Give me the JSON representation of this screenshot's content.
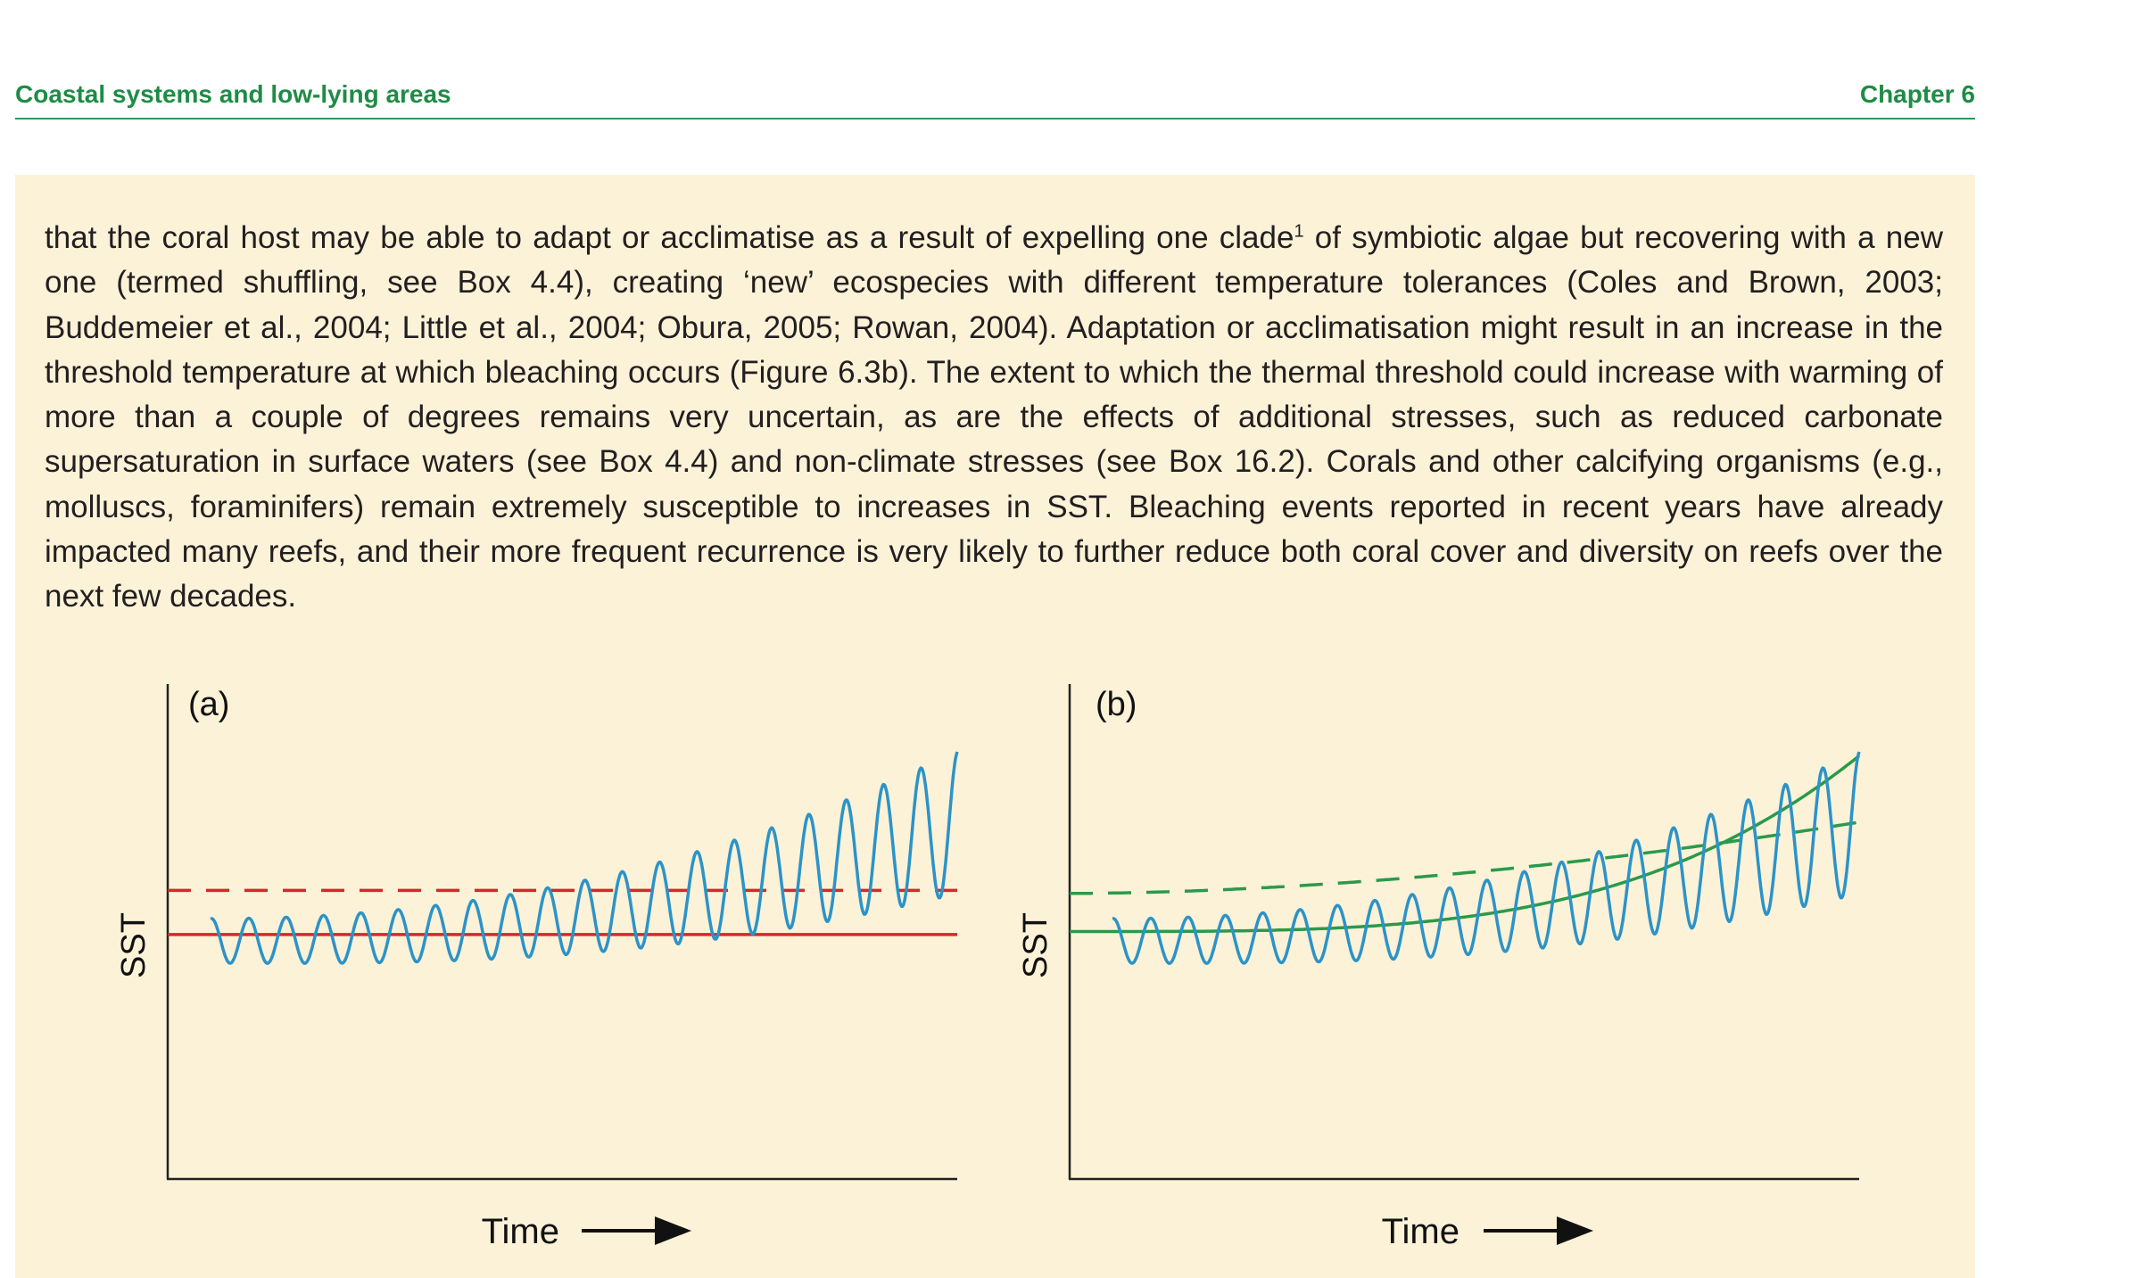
{
  "header": {
    "section_title": "Coastal systems and low-lying areas",
    "chapter": "Chapter 6"
  },
  "paragraph": {
    "part1": "that the coral host may be able to adapt or acclimatise as a result of expelling one clade",
    "footnote_mark": "1",
    "part2": " of symbiotic algae but recovering with a new one (termed shuffling, see Box 4.4), creating ‘new’ ecospecies with different temperature tolerances (Coles and Brown, 2003; Buddemeier et al., 2004; Little et al., 2004; Obura, 2005; Rowan, 2004). Adaptation or acclimatisation might result in an increase in the threshold temperature at which bleaching occurs (Figure 6.3b). The extent to which the thermal threshold could increase with warming of more than a couple of degrees remains very uncertain, as are the effects of additional stresses, such as reduced carbonate supersaturation in surface waters (see Box 4.4) and non-climate stresses (see Box 16.2). Corals and other calcifying organisms (e.g., molluscs, foraminifers) remain extremely susceptible to increases in SST. Bleaching events reported in recent years have already impacted many reefs, and their more frequent recurrence is very likely to further reduce both coral cover and diversity on reefs over the next few decades."
  },
  "colors": {
    "sst_line": "#2b93c8",
    "threshold_red": "#d8262a",
    "threshold_green": "#2a9a4a",
    "axis": "#222222",
    "panel_bg": "#fcf2d8"
  },
  "chart_data": [
    {
      "type": "line",
      "panel_label": "(a)",
      "xlabel": "Time",
      "ylabel": "SST",
      "ticks": "none",
      "series": [
        {
          "kind": "oscillating",
          "color": "#2b93c8",
          "cycles": 20,
          "trend": "rising, accelerating",
          "amplitude": "growing"
        },
        {
          "kind": "constant-solid",
          "color": "#d8262a",
          "level": 0.494
        },
        {
          "kind": "constant-dashed",
          "color": "#d8262a",
          "level": 0.583
        }
      ]
    },
    {
      "type": "line",
      "panel_label": "(b)",
      "xlabel": "Time",
      "ylabel": "SST",
      "ticks": "none",
      "series": [
        {
          "kind": "oscillating",
          "color": "#2b93c8",
          "cycles": 20,
          "trend": "rising, accelerating",
          "amplitude": "growing"
        },
        {
          "kind": "rising-solid",
          "color": "#2a9a4a",
          "start_level": 0.5,
          "end_level": 0.855
        },
        {
          "kind": "rising-dashed",
          "color": "#2a9a4a",
          "start_level": 0.577,
          "end_level": 0.721
        }
      ]
    }
  ]
}
